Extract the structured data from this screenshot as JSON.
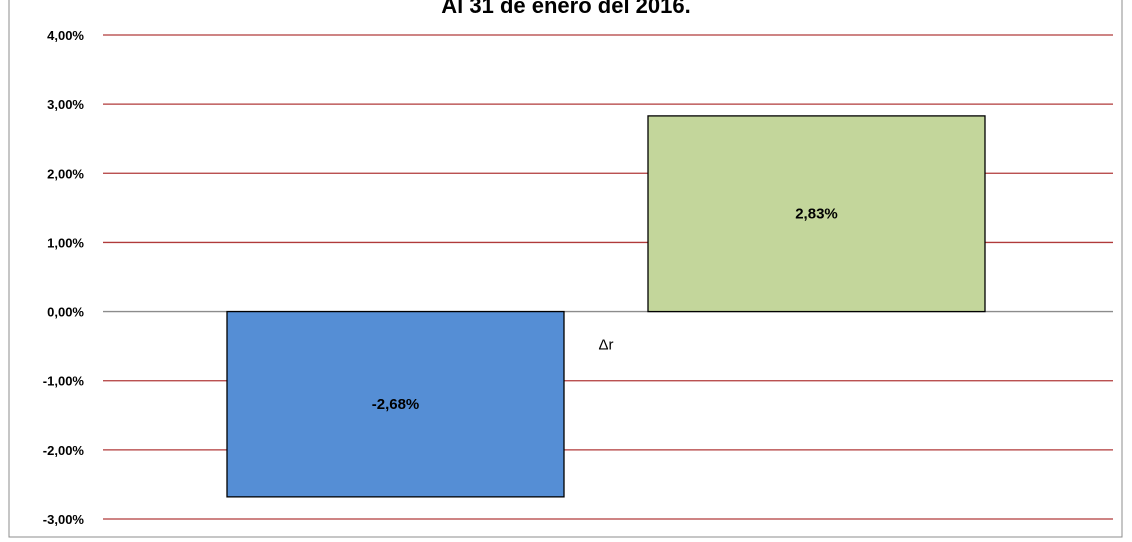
{
  "chart_data": {
    "type": "bar",
    "title": "Al 31 de enero del 2016.",
    "categories": [
      "Δr"
    ],
    "series": [
      {
        "color": "#558ed5",
        "values": [
          -2.68
        ],
        "value_labels": [
          "-2,68%"
        ]
      },
      {
        "color": "#c3d69b",
        "values": [
          2.83
        ],
        "value_labels": [
          "2,83%"
        ]
      }
    ],
    "ylim": [
      -3,
      4
    ],
    "yticks": [
      {
        "value": -3,
        "label": "-3,00%"
      },
      {
        "value": -2,
        "label": "-2,00%"
      },
      {
        "value": -1,
        "label": "-1,00%"
      },
      {
        "value": 0,
        "label": "0,00%"
      },
      {
        "value": 1,
        "label": "1,00%"
      },
      {
        "value": 2,
        "label": "2,00%"
      },
      {
        "value": 3,
        "label": "3,00%"
      },
      {
        "value": 4,
        "label": "4,00%"
      }
    ],
    "grid": true,
    "grid_color": "#b03a3a"
  }
}
